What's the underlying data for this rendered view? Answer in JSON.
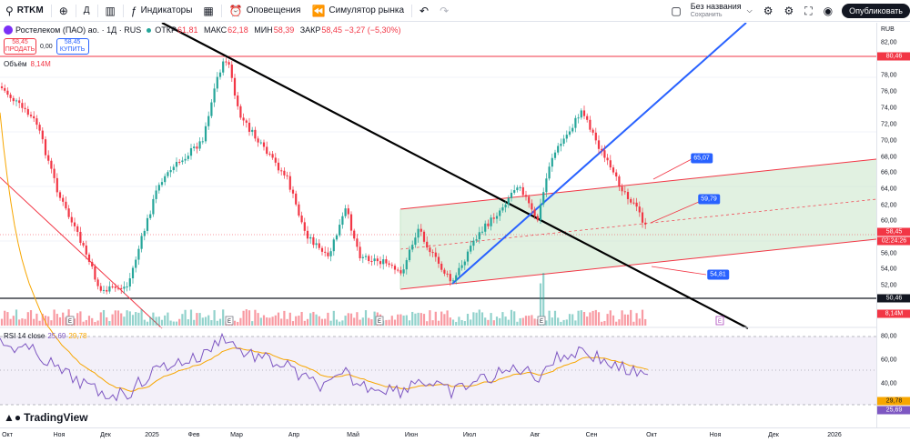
{
  "toolbar": {
    "symbol": "RTKM",
    "add_icon": "plus-circle-icon",
    "interval": "Д",
    "chart_type_icon": "candles-icon",
    "indicators_label": "Индикаторы",
    "layouts_icon": "grid-icon",
    "alerts_label": "Оповещения",
    "replay_label": "Симулятор рынка",
    "undo_icon": "undo-icon",
    "redo_icon": "redo-icon",
    "layout_name": "Без названия",
    "layout_sub": "Сохранить",
    "publish_label": "Опубликовать"
  },
  "legend": {
    "title": "Ростелеком (ПАО) ао. · 1Д · RUS",
    "open_k": "ОТКР",
    "open_v": "61,81",
    "high_k": "МАКС",
    "high_v": "62,18",
    "low_k": "МИН",
    "low_v": "58,39",
    "close_k": "ЗАКР",
    "close_v": "58,45 −3,27 (−5,30%)",
    "sell_price": "58,45",
    "sell_label": "ПРОДАТЬ",
    "spread": "0,00",
    "buy_price": "58,45",
    "buy_label": "КУПИТЬ",
    "volume_label": "Объём",
    "volume_value": "8,14M",
    "rsi_label": "RSI 14 close",
    "rsi_value": "25,69",
    "rsi_ma": "29,78"
  },
  "price_scale": {
    "currency": "RUB",
    "ticks": [
      "82,00",
      "78,00",
      "76,00",
      "74,00",
      "72,00",
      "70,00",
      "68,00",
      "66,00",
      "64,00",
      "62,00",
      "60,00",
      "56,00",
      "54,00",
      "52,00"
    ],
    "rsi_ticks": [
      "80,00",
      "60,00",
      "40,00"
    ],
    "tag_top": "80,46",
    "tag_last": "58,45",
    "tag_timer": "02:24:26",
    "tag_support": "50,46",
    "tag_volume": "8,14M",
    "tag_rsi_ma": "29,78",
    "tag_rsi": "25,69"
  },
  "time_axis": [
    "Окт",
    "Ноя",
    "Дек",
    "2025",
    "Фев",
    "Мар",
    "Апр",
    "Май",
    "Июн",
    "Июл",
    "Авг",
    "Сен",
    "Окт",
    "Ноя",
    "Дек",
    "2026"
  ],
  "callouts": [
    "65,07",
    "59,79",
    "54,81"
  ],
  "brand": "TradingView",
  "colors": {
    "up": "#26a69a",
    "down": "#f23645",
    "accent": "#2962ff",
    "rsi": "#7e57c2",
    "rsi_ma": "#f7a600"
  }
}
